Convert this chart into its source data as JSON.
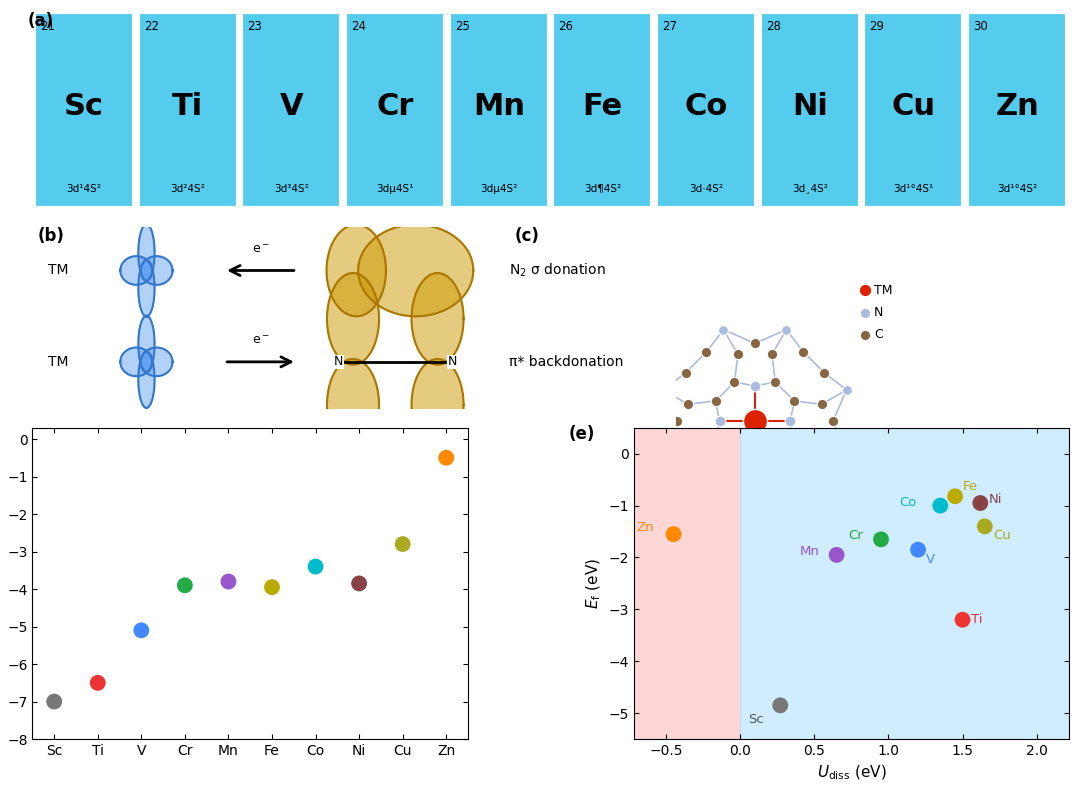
{
  "elements": [
    "Sc",
    "Ti",
    "V",
    "Cr",
    "Mn",
    "Fe",
    "Co",
    "Ni",
    "Cu",
    "Zn"
  ],
  "atomic_numbers": [
    21,
    22,
    23,
    24,
    25,
    26,
    27,
    28,
    29,
    30
  ],
  "electron_configs": [
    "3d¹4S²",
    "3d²4S²",
    "3d³4S²",
    "3dµ4S¹",
    "3dµ4S²",
    "3d¶4S²",
    "3d·4S²",
    "3d¸4S²",
    "3d¹°4S¹",
    "3d¹°4S²"
  ],
  "electron_configs_display": [
    "3d¹4S²",
    "3d²4S²",
    "3d³4S²",
    "3dµ4S¹",
    "3dµ4S²",
    "3d¶4S²",
    "3d·4S²",
    "3d¸4S²",
    "3d¹°4S¹",
    "3d¹°4S²"
  ],
  "colors_d": [
    "#777777",
    "#EE3333",
    "#4488FF",
    "#22AA44",
    "#9955CC",
    "#BBAA00",
    "#00BBCC",
    "#884444",
    "#AAAA22",
    "#FF8800"
  ],
  "Eb_values": [
    -7.0,
    -6.5,
    -5.1,
    -3.9,
    -3.8,
    -3.95,
    -3.4,
    -3.85,
    -2.8,
    -0.5
  ],
  "Udiss_values": [
    0.27,
    1.5,
    1.2,
    0.95,
    0.65,
    1.45,
    1.35,
    1.62,
    1.65,
    -0.45
  ],
  "Ef_values": [
    -4.85,
    -3.2,
    -1.85,
    -1.65,
    -1.95,
    -0.82,
    -1.0,
    -0.95,
    -1.4,
    -1.55
  ],
  "colors_e": [
    "#777777",
    "#EE3333",
    "#4488FF",
    "#22AA44",
    "#9955CC",
    "#BBAA00",
    "#00BBCC",
    "#884444",
    "#AAAA22",
    "#FF8800"
  ],
  "tile_color": "#55CCEE",
  "pink_bg": "#FFCCCC",
  "blue_bg": "#AADDFF"
}
